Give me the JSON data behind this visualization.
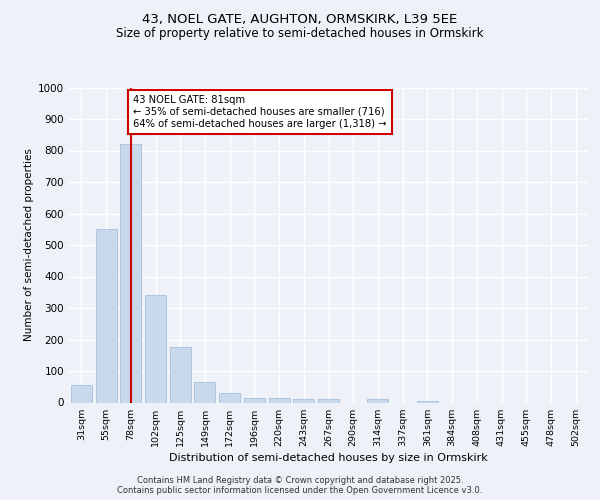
{
  "title_line1": "43, NOEL GATE, AUGHTON, ORMSKIRK, L39 5EE",
  "title_line2": "Size of property relative to semi-detached houses in Ormskirk",
  "xlabel": "Distribution of semi-detached houses by size in Ormskirk",
  "ylabel": "Number of semi-detached properties",
  "categories": [
    "31sqm",
    "55sqm",
    "78sqm",
    "102sqm",
    "125sqm",
    "149sqm",
    "172sqm",
    "196sqm",
    "220sqm",
    "243sqm",
    "267sqm",
    "290sqm",
    "314sqm",
    "337sqm",
    "361sqm",
    "384sqm",
    "408sqm",
    "431sqm",
    "455sqm",
    "478sqm",
    "502sqm"
  ],
  "values": [
    55,
    550,
    820,
    340,
    175,
    65,
    30,
    15,
    13,
    10,
    10,
    0,
    10,
    0,
    5,
    0,
    0,
    0,
    0,
    0,
    0
  ],
  "bar_color": "#c8d9ee",
  "bar_edge_color": "#a8c0dc",
  "vline_x": 2,
  "vline_color": "#cc0000",
  "annotation_text": "43 NOEL GATE: 81sqm\n← 35% of semi-detached houses are smaller (716)\n64% of semi-detached houses are larger (1,318) →",
  "annotation_box_color": "#cc0000",
  "ylim": [
    0,
    1000
  ],
  "yticks": [
    0,
    100,
    200,
    300,
    400,
    500,
    600,
    700,
    800,
    900,
    1000
  ],
  "footer_line1": "Contains HM Land Registry data © Crown copyright and database right 2025.",
  "footer_line2": "Contains public sector information licensed under the Open Government Licence v3.0.",
  "bg_color": "#eef2f8",
  "plot_bg_color": "#eef2f8"
}
